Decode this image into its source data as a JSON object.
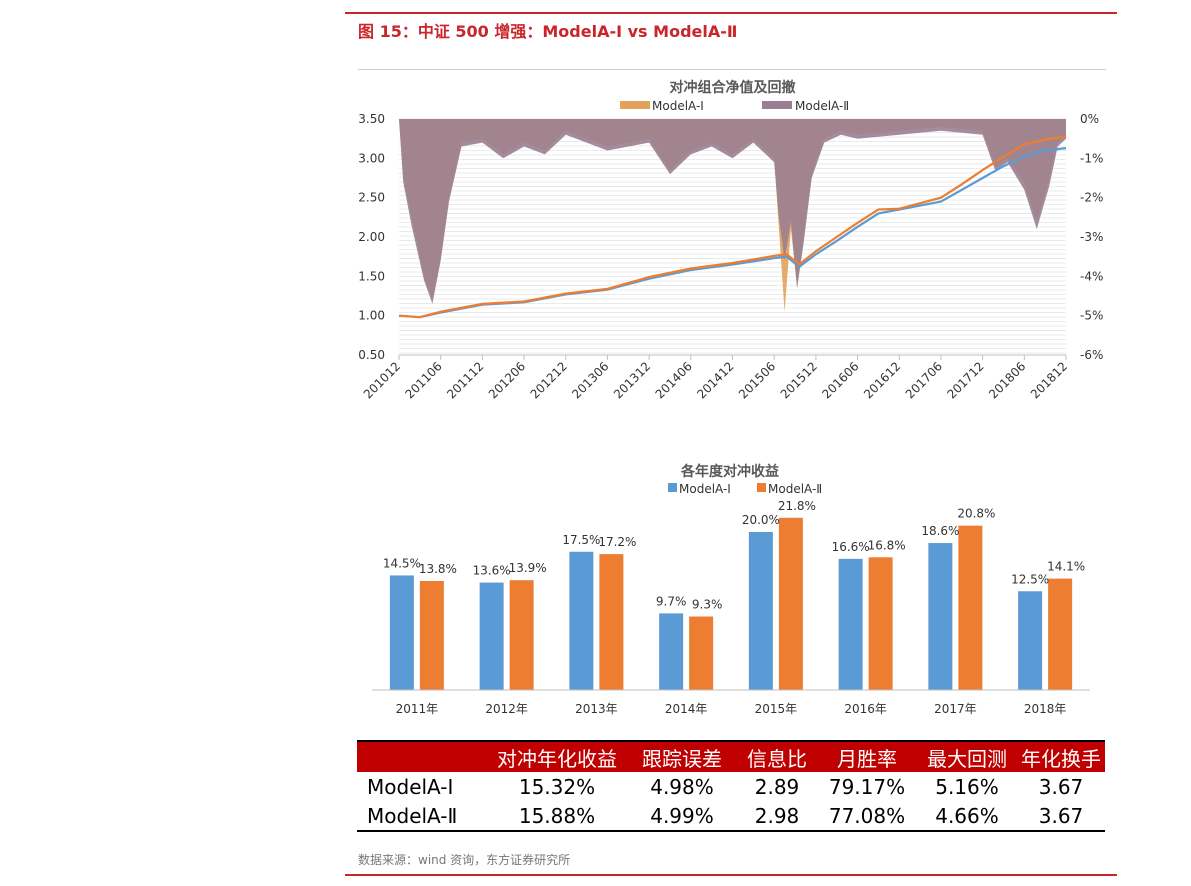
{
  "figure_title": "图 15：中证 500 增强：ModelA-Ⅰ vs ModelA-Ⅱ",
  "source": "数据来源：wind 资询，东方证券研究所",
  "colors": {
    "red": "#c9252b",
    "blue": "#5b9bd5",
    "orange": "#ed7d31",
    "drawdown_fill": "#9a7f92",
    "drawdown_orange": "#e3a15a"
  },
  "chart_data": [
    {
      "type": "line",
      "title": "对冲组合净值及回撤",
      "legend": [
        "ModelA-Ⅰ",
        "ModelA-Ⅱ"
      ],
      "legend_position": "top",
      "ylim": [
        0.5,
        3.5
      ],
      "y_ticks": [
        "3.50",
        "3.00",
        "2.50",
        "2.00",
        "1.50",
        "1.00",
        "0.50"
      ],
      "y2lim": [
        -6,
        0
      ],
      "y2_ticks": [
        "0%",
        "-1%",
        "-2%",
        "-3%",
        "-4%",
        "-5%",
        "-6%"
      ],
      "x_ticks": [
        "201012",
        "201106",
        "201112",
        "201206",
        "201212",
        "201306",
        "201312",
        "201406",
        "201412",
        "201506",
        "201512",
        "201606",
        "201612",
        "201706",
        "201712",
        "201806",
        "201812"
      ],
      "grid": true,
      "series": [
        {
          "name": "ModelA-Ⅰ 净值",
          "x": [
            0,
            0.5,
            1,
            2,
            3,
            4,
            5,
            6,
            7,
            8,
            9,
            9.3,
            9.6,
            10,
            10.5,
            11,
            11.5,
            12,
            13,
            13.5,
            14,
            14.5,
            15,
            15.5,
            16
          ],
          "values": [
            1.0,
            0.98,
            1.04,
            1.14,
            1.17,
            1.27,
            1.33,
            1.47,
            1.58,
            1.65,
            1.73,
            1.75,
            1.62,
            1.78,
            1.95,
            2.13,
            2.3,
            2.35,
            2.45,
            2.6,
            2.75,
            2.9,
            3.02,
            3.1,
            3.13
          ]
        },
        {
          "name": "ModelA-Ⅱ 净值",
          "x": [
            0,
            0.5,
            1,
            2,
            3,
            4,
            5,
            6,
            7,
            8,
            9,
            9.3,
            9.6,
            10,
            10.5,
            11,
            11.5,
            12,
            13,
            13.5,
            14,
            14.5,
            15,
            15.5,
            16
          ],
          "values": [
            1.0,
            0.98,
            1.05,
            1.15,
            1.18,
            1.28,
            1.34,
            1.49,
            1.6,
            1.67,
            1.76,
            1.78,
            1.65,
            1.82,
            2.0,
            2.18,
            2.35,
            2.36,
            2.5,
            2.67,
            2.85,
            3.02,
            3.18,
            3.24,
            3.28
          ]
        },
        {
          "name": "ModelA-Ⅰ 回撤",
          "x": [
            0,
            0.1,
            0.3,
            0.6,
            0.8,
            1.0,
            1.2,
            1.5,
            2.0,
            2.5,
            3.0,
            3.5,
            4.0,
            5.0,
            6.0,
            6.5,
            7.0,
            7.5,
            8.0,
            8.5,
            9.0,
            9.1,
            9.25,
            9.4,
            9.55,
            9.7,
            9.9,
            10.2,
            10.6,
            11.0,
            12.0,
            13.0,
            14.0,
            14.3,
            14.6,
            15.0,
            15.3,
            15.6,
            15.8,
            16.0
          ],
          "values": [
            0,
            -1.5,
            -2.5,
            -4.0,
            -4.6,
            -3.5,
            -2.0,
            -0.6,
            -0.5,
            -0.9,
            -0.6,
            -0.8,
            -0.3,
            -0.7,
            -0.5,
            -1.3,
            -0.8,
            -0.6,
            -0.9,
            -0.5,
            -1.0,
            -2.6,
            -4.9,
            -2.8,
            -4.3,
            -3.0,
            -1.4,
            -0.5,
            -0.3,
            -0.4,
            -0.3,
            -0.2,
            -0.3,
            -1.2,
            -1.0,
            -1.6,
            -2.6,
            -1.5,
            -0.6,
            -0.4
          ]
        },
        {
          "name": "ModelA-Ⅱ 回撤",
          "x": [
            0,
            0.1,
            0.3,
            0.6,
            0.8,
            1.0,
            1.2,
            1.5,
            2.0,
            2.5,
            3.0,
            3.5,
            4.0,
            5.0,
            6.0,
            6.5,
            7.0,
            7.5,
            8.0,
            8.5,
            9.0,
            9.1,
            9.25,
            9.4,
            9.55,
            9.7,
            9.9,
            10.2,
            10.6,
            11.0,
            12.0,
            13.0,
            14.0,
            14.3,
            14.6,
            15.0,
            15.3,
            15.6,
            15.8,
            16.0
          ],
          "values": [
            0,
            -1.6,
            -2.7,
            -4.1,
            -4.7,
            -3.6,
            -2.1,
            -0.7,
            -0.6,
            -1.0,
            -0.7,
            -0.9,
            -0.4,
            -0.8,
            -0.6,
            -1.4,
            -0.9,
            -0.7,
            -1.0,
            -0.6,
            -1.1,
            -2.4,
            -3.6,
            -2.6,
            -4.3,
            -3.2,
            -1.5,
            -0.6,
            -0.4,
            -0.5,
            -0.4,
            -0.3,
            -0.4,
            -1.3,
            -1.1,
            -1.8,
            -2.8,
            -1.7,
            -0.7,
            -0.5
          ]
        }
      ]
    },
    {
      "type": "bar",
      "title": "各年度对冲收益",
      "legend": [
        "ModelA-Ⅰ",
        "ModelA-Ⅱ"
      ],
      "legend_position": "top",
      "categories": [
        "2011年",
        "2012年",
        "2013年",
        "2014年",
        "2015年",
        "2016年",
        "2017年",
        "2018年"
      ],
      "ylim": [
        0,
        25
      ],
      "series": [
        {
          "name": "ModelA-Ⅰ",
          "values": [
            14.5,
            13.6,
            17.5,
            9.7,
            20.0,
            16.6,
            18.6,
            12.5
          ],
          "labels": [
            "14.5%",
            "13.6%",
            "17.5%",
            "9.7%",
            "20.0%",
            "16.6%",
            "18.6%",
            "12.5%"
          ]
        },
        {
          "name": "ModelA-Ⅱ",
          "values": [
            13.8,
            13.9,
            17.2,
            9.3,
            21.8,
            16.8,
            20.8,
            14.1
          ],
          "labels": [
            "13.8%",
            "13.9%",
            "17.2%",
            "9.3%",
            "21.8%",
            "16.8%",
            "20.8%",
            "14.1%"
          ]
        }
      ]
    }
  ],
  "table": {
    "headers": [
      "",
      "对冲年化收益",
      "跟踪误差",
      "信息比",
      "月胜率",
      "最大回测",
      "年化换手"
    ],
    "rows": [
      [
        "ModelA-Ⅰ",
        "15.32%",
        "4.98%",
        "2.89",
        "79.17%",
        "5.16%",
        "3.67"
      ],
      [
        "ModelA-Ⅱ",
        "15.88%",
        "4.99%",
        "2.98",
        "77.08%",
        "4.66%",
        "3.67"
      ]
    ]
  }
}
